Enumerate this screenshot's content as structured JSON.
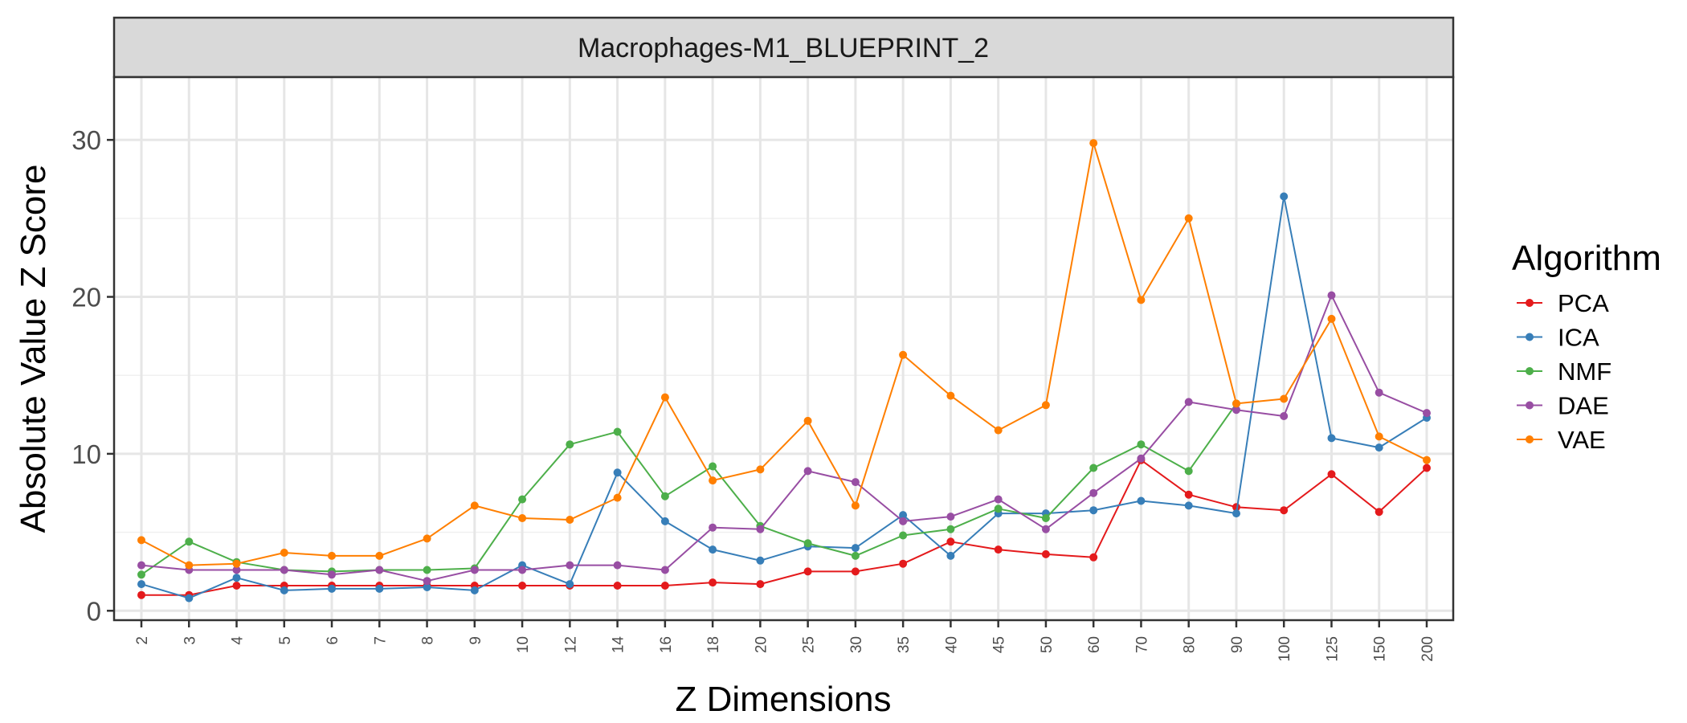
{
  "chart_data": {
    "type": "line",
    "panel_title": "Macrophages-M1_BLUEPRINT_2",
    "xlabel": "Z Dimensions",
    "ylabel": "Absolute Value Z Score",
    "x_ticks": [
      "2",
      "3",
      "4",
      "5",
      "6",
      "7",
      "8",
      "9",
      "10",
      "12",
      "14",
      "16",
      "18",
      "20",
      "25",
      "30",
      "35",
      "40",
      "45",
      "50",
      "60",
      "70",
      "80",
      "90",
      "100",
      "125",
      "150",
      "200"
    ],
    "y_ticks": [
      0,
      10,
      20,
      30
    ],
    "ylim": [
      -0.6,
      34
    ],
    "grid": true,
    "legend_title": "Algorithm",
    "legend_position": "right",
    "series": [
      {
        "name": "PCA",
        "color": "#e41a1c",
        "values": [
          1.0,
          1.0,
          1.6,
          1.6,
          1.6,
          1.6,
          1.6,
          1.6,
          1.6,
          1.6,
          1.6,
          1.6,
          1.8,
          1.7,
          2.5,
          2.5,
          3.0,
          4.4,
          3.9,
          3.6,
          3.4,
          9.6,
          7.4,
          6.6,
          6.4,
          8.7,
          6.3,
          9.1
        ]
      },
      {
        "name": "ICA",
        "color": "#377eb8",
        "values": [
          1.7,
          0.8,
          2.1,
          1.3,
          1.4,
          1.4,
          1.5,
          1.3,
          2.9,
          1.7,
          8.8,
          5.7,
          3.9,
          3.2,
          4.1,
          4.0,
          6.1,
          3.5,
          6.2,
          6.2,
          6.4,
          7.0,
          6.7,
          6.2,
          26.4,
          11.0,
          10.4,
          12.3
        ]
      },
      {
        "name": "NMF",
        "color": "#4daf4a",
        "values": [
          2.3,
          4.4,
          3.1,
          2.6,
          2.5,
          2.6,
          2.6,
          2.7,
          7.1,
          10.6,
          11.4,
          7.3,
          9.2,
          5.4,
          4.3,
          3.5,
          4.8,
          5.2,
          6.5,
          5.9,
          9.1,
          10.6,
          8.9,
          13.2,
          null,
          null,
          null,
          null
        ]
      },
      {
        "name": "DAE",
        "color": "#984ea3",
        "values": [
          2.9,
          2.6,
          2.6,
          2.6,
          2.3,
          2.6,
          1.9,
          2.6,
          2.6,
          2.9,
          2.9,
          2.6,
          5.3,
          5.2,
          8.9,
          8.2,
          5.7,
          6.0,
          7.1,
          5.2,
          7.5,
          9.7,
          13.3,
          12.8,
          12.4,
          20.1,
          13.9,
          12.6
        ]
      },
      {
        "name": "VAE",
        "color": "#ff7f00",
        "values": [
          4.5,
          2.9,
          3.0,
          3.7,
          3.5,
          3.5,
          4.6,
          6.7,
          5.9,
          5.8,
          7.2,
          13.6,
          8.3,
          9.0,
          12.1,
          6.7,
          16.3,
          13.7,
          11.5,
          13.1,
          29.8,
          19.8,
          25.0,
          13.2,
          13.5,
          18.6,
          11.1,
          9.6
        ]
      }
    ]
  }
}
